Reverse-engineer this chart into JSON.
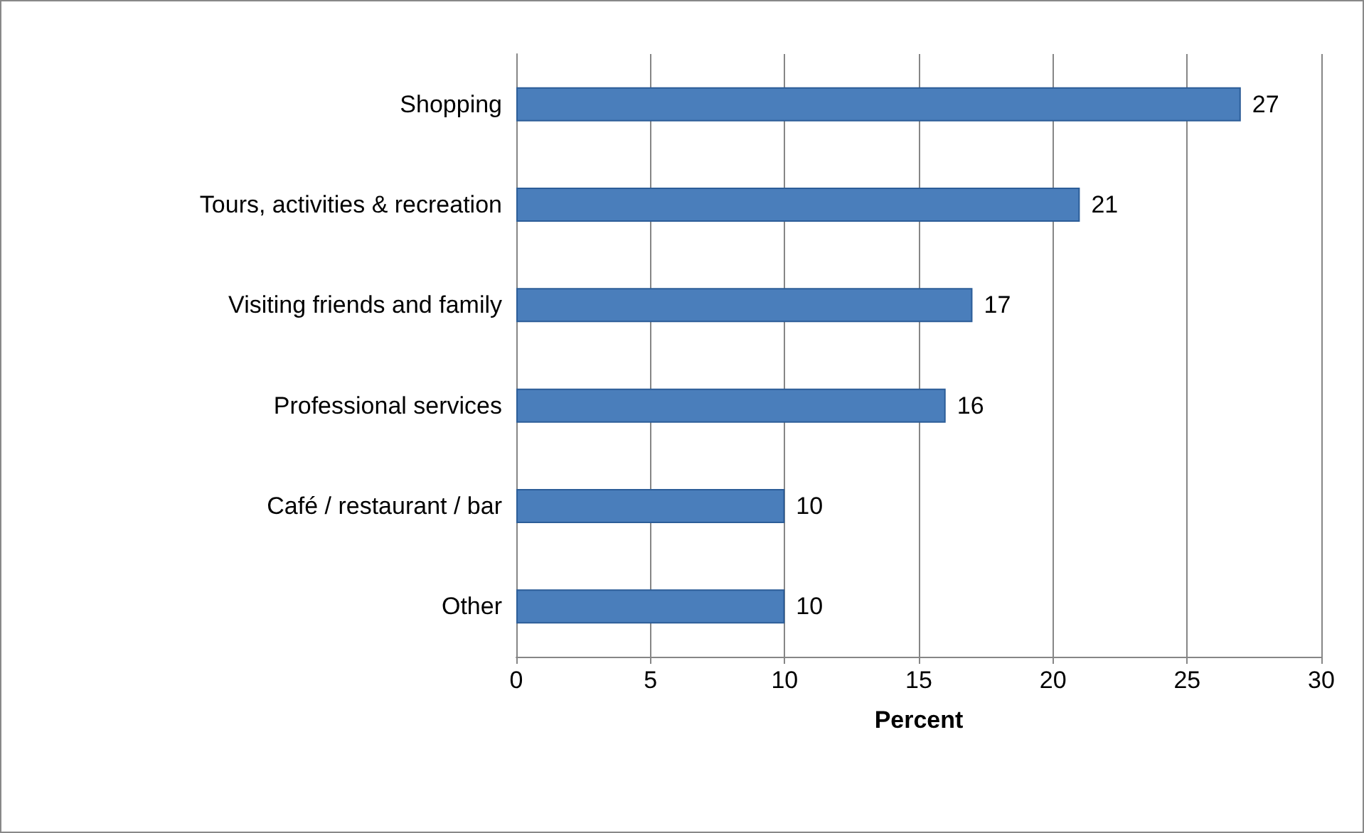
{
  "chart_data": {
    "type": "bar",
    "orientation": "horizontal",
    "categories": [
      "Shopping",
      "Tours, activities & recreation",
      "Visiting friends and family",
      "Professional services",
      "Café / restaurant / bar",
      "Other"
    ],
    "values": [
      27,
      21,
      17,
      16,
      10,
      10
    ],
    "color": "#4a7ebb",
    "xlabel": "Percent",
    "xlim": [
      0,
      30
    ],
    "xticks": [
      0,
      5,
      10,
      15,
      20,
      25,
      30
    ],
    "grid": "x",
    "data_labels": true
  }
}
